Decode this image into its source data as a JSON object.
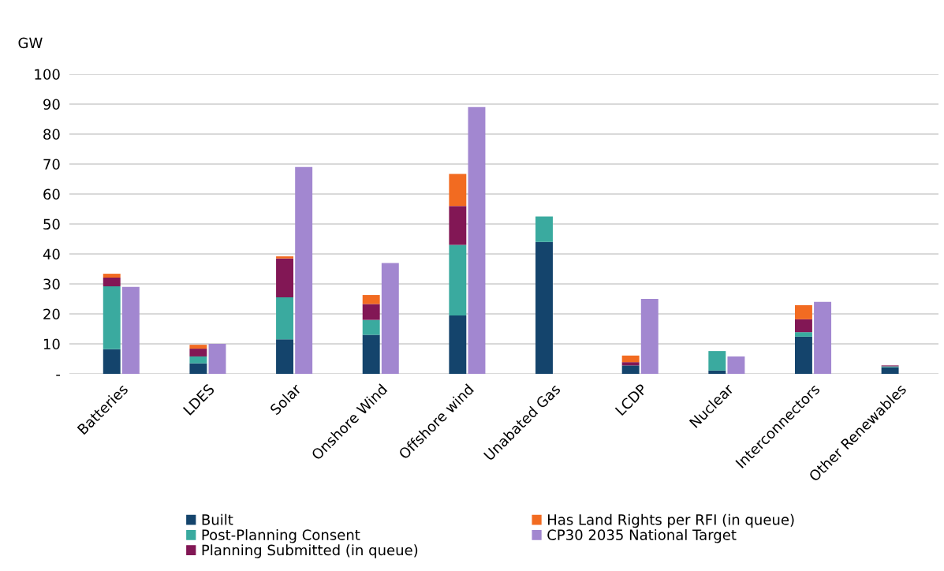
{
  "chart_data": [
    {
      "type": "bar",
      "ylabel": "GW",
      "stacked": true,
      "categories": [
        "Batteries",
        "LDES",
        "Solar",
        "Onshore Wind",
        "Offshore wind",
        "Unabated Gas",
        "LCDP",
        "Nuclear",
        "Interconnectors",
        "Other Renewables"
      ],
      "series": [
        {
          "name": "Built",
          "color": "#14446c",
          "values": [
            8.2,
            3.5,
            11.5,
            13,
            19.5,
            44,
            2.8,
            1.1,
            12.4,
            2.2
          ]
        },
        {
          "name": "Post-Planning Consent",
          "color": "#3aaa9f",
          "values": [
            21,
            2.3,
            14,
            5,
            23.5,
            8.5,
            null,
            6.5,
            1.5,
            0.3
          ]
        },
        {
          "name": "Planning Submitted (in queue)",
          "color": "#821755",
          "values": [
            2.9,
            2.6,
            13,
            5.3,
            13,
            null,
            1.1,
            null,
            4.3,
            0.3
          ]
        },
        {
          "name": "Has Land Rights per RFI (in queue)",
          "color": "#f26b21",
          "values": [
            1.3,
            1.3,
            0.7,
            3,
            10.7,
            null,
            2.2,
            null,
            4.7,
            null
          ]
        }
      ],
      "ylim": [
        0,
        100
      ],
      "yticks": [
        {
          "value": 0,
          "label": "-"
        },
        10,
        20,
        30,
        40,
        50,
        60,
        70,
        80,
        90,
        100
      ],
      "grid": "y",
      "legend": "bottom"
    },
    {
      "type": "bar",
      "categories": [
        null,
        null,
        null,
        null,
        null,
        null,
        null,
        null,
        null,
        null
      ],
      "series": [
        {
          "name": "CP30 2035 National Target",
          "color": "#a287d0",
          "values": [
            29,
            10,
            69,
            37,
            89,
            null,
            25,
            5.8,
            24,
            null
          ]
        }
      ],
      "ylim": [
        0,
        100
      ],
      "legend": "bottom"
    }
  ]
}
